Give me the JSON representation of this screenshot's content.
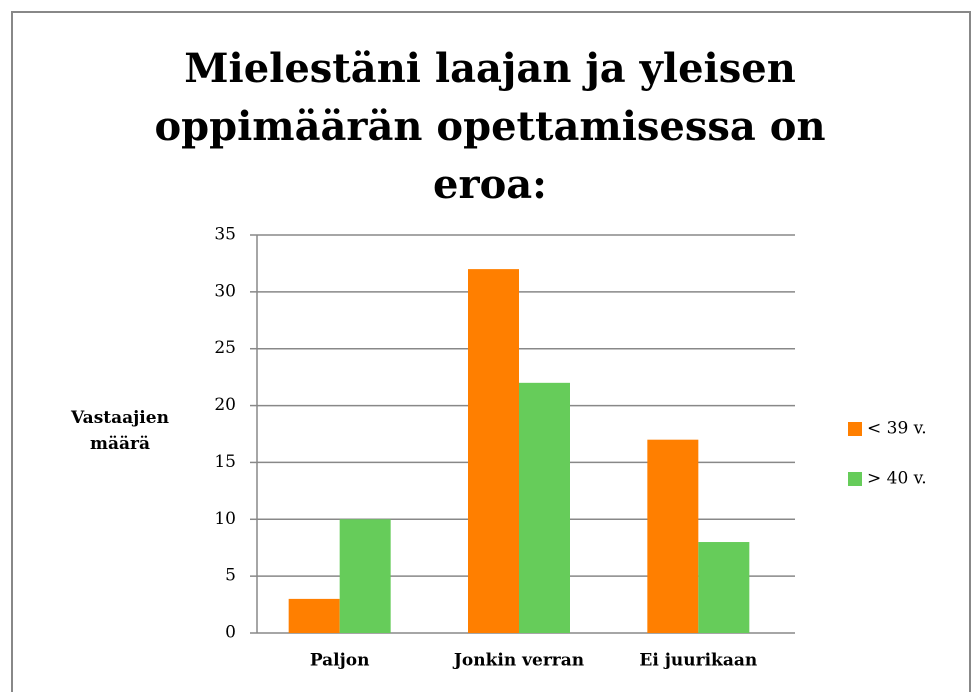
{
  "chart_data": {
    "type": "bar",
    "title": "Mielestäni laajan ja yleisen oppimäärän opettamisessa on eroa:",
    "ylabel": "Vastaajien määrä",
    "categories": [
      "Paljon",
      "Jonkin verran",
      "Ei juurikaan"
    ],
    "series": [
      {
        "name": "< 39 v.",
        "color": "#ff7f00",
        "values": [
          3,
          32,
          17
        ]
      },
      {
        "name": "> 40 v.",
        "color": "#66cc5a",
        "values": [
          10,
          22,
          8
        ]
      }
    ],
    "ylim": [
      0,
      35
    ],
    "yticks": [
      0,
      5,
      10,
      15,
      20,
      25,
      30,
      35
    ],
    "grid": true,
    "legend": "right"
  }
}
